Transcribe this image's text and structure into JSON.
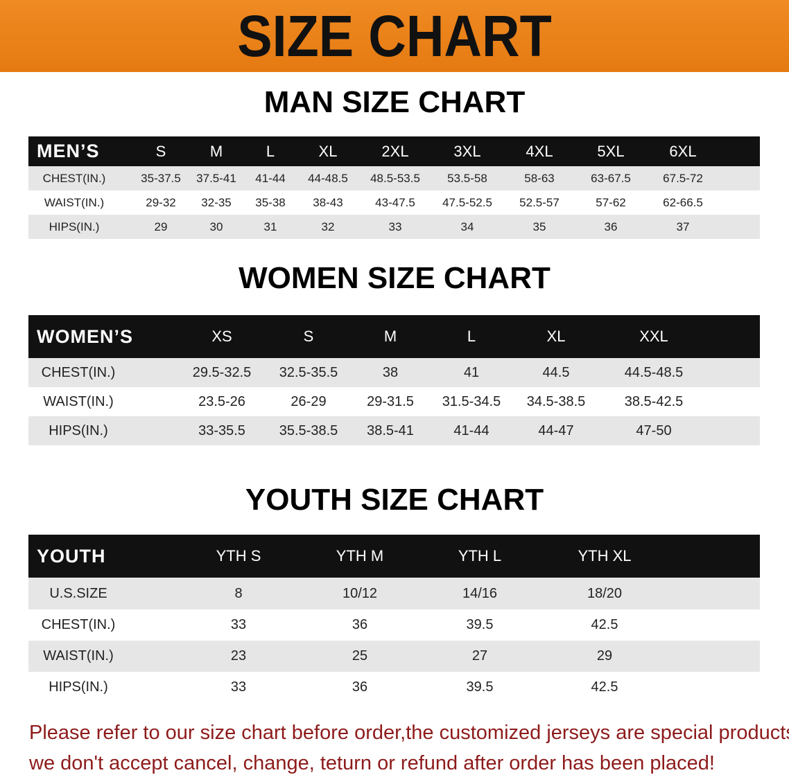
{
  "header": {
    "title": "SIZE CHART"
  },
  "sections": [
    {
      "title": "MAN SIZE CHART",
      "table": {
        "header": [
          "MEN’S",
          "S",
          "M",
          "L",
          "XL",
          "2XL",
          "3XL",
          "4XL",
          "5XL",
          "6XL"
        ],
        "rows": [
          [
            "CHEST(IN.)",
            "35-37.5",
            "37.5-41",
            "41-44",
            "44-48.5",
            "48.5-53.5",
            "53.5-58",
            "58-63",
            "63-67.5",
            "67.5-72"
          ],
          [
            "WAIST(IN.)",
            "29-32",
            "32-35",
            "35-38",
            "38-43",
            "43-47.5",
            "47.5-52.5",
            "52.5-57",
            "57-62",
            "62-66.5"
          ],
          [
            "HIPS(IN.)",
            "29",
            "30",
            "31",
            "32",
            "33",
            "34",
            "35",
            "36",
            "37"
          ]
        ]
      }
    },
    {
      "title": "WOMEN SIZE CHART",
      "table": {
        "header": [
          "WOMEN’S",
          "XS",
          "S",
          "M",
          "L",
          "XL",
          "XXL"
        ],
        "rows": [
          [
            "CHEST(IN.)",
            "29.5-32.5",
            "32.5-35.5",
            "38",
            "41",
            "44.5",
            "44.5-48.5"
          ],
          [
            "WAIST(IN.)",
            "23.5-26",
            "26-29",
            "29-31.5",
            "31.5-34.5",
            "34.5-38.5",
            "38.5-42.5"
          ],
          [
            "HIPS(IN.)",
            "33-35.5",
            "35.5-38.5",
            "38.5-41",
            "41-44",
            "44-47",
            "47-50"
          ]
        ]
      }
    },
    {
      "title": "YOUTH SIZE CHART",
      "table": {
        "header": [
          "YOUTH",
          "YTH S",
          "YTH M",
          "YTH L",
          "YTH XL"
        ],
        "rows": [
          [
            "U.S.SIZE",
            "8",
            "10/12",
            "14/16",
            "18/20"
          ],
          [
            "CHEST(IN.)",
            "33",
            "36",
            "39.5",
            "42.5"
          ],
          [
            "WAIST(IN.)",
            "23",
            "25",
            "27",
            "29"
          ],
          [
            "HIPS(IN.)",
            "33",
            "36",
            "39.5",
            "42.5"
          ]
        ]
      }
    }
  ],
  "note": [
    "Please refer to our size chart before order,the customized jerseys are special products,",
    "we don't accept cancel, change, teturn or refund after order has been placed!"
  ]
}
